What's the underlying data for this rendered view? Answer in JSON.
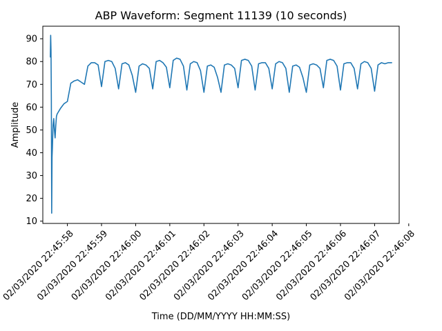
{
  "chart_data": {
    "type": "line",
    "title": "ABP Waveform: Segment 11139 (10 seconds)",
    "xlabel": "Time (DD/MM/YYYY HH:MM:SS)",
    "ylabel": "Amplitude",
    "xlim": [
      "02/03/2020 22:45:57.28",
      "02/03/2020 22:46:07.72"
    ],
    "ylim": [
      9,
      95.5
    ],
    "grid": false,
    "line_color": "#1f77b4",
    "x_ticks": [
      "02/03/2020 22:45:58",
      "02/03/2020 22:45:59",
      "02/03/2020 22:46:00",
      "02/03/2020 22:46:01",
      "02/03/2020 22:46:02",
      "02/03/2020 22:46:03",
      "02/03/2020 22:46:04",
      "02/03/2020 22:46:05",
      "02/03/2020 22:46:06",
      "02/03/2020 22:46:07",
      "02/03/2020 22:46:08"
    ],
    "y_ticks": [
      "10",
      "20",
      "30",
      "40",
      "50",
      "60",
      "70",
      "80",
      "90"
    ],
    "series": [
      {
        "x": [
          "02/03/2020 22:45:57.50",
          "02/03/2020 22:45:57.51",
          "02/03/2020 22:45:57.52",
          "02/03/2020 22:45:57.53",
          "02/03/2020 22:45:57.54",
          "02/03/2020 22:45:57.55",
          "02/03/2020 22:45:57.56",
          "02/03/2020 22:45:57.58",
          "02/03/2020 22:45:57.60",
          "02/03/2020 22:45:57.62",
          "02/03/2020 22:45:57.64",
          "02/03/2020 22:45:57.66",
          "02/03/2020 22:45:57.68",
          "02/03/2020 22:45:57.70",
          "02/03/2020 22:45:57.72",
          "02/03/2020 22:45:57.76",
          "02/03/2020 22:45:57.80",
          "02/03/2020 22:45:57.85",
          "02/03/2020 22:45:57.90",
          "02/03/2020 22:45:58.00",
          "02/03/2020 22:45:58.10",
          "02/03/2020 22:45:58.20",
          "02/03/2020 22:45:58.30",
          "02/03/2020 22:45:58.40",
          "02/03/2020 22:45:58.50",
          "02/03/2020 22:45:58.60",
          "02/03/2020 22:45:58.70",
          "02/03/2020 22:45:58.80",
          "02/03/2020 22:45:58.90",
          "02/03/2020 22:45:59.00",
          "02/03/2020 22:45:59.10",
          "02/03/2020 22:45:59.20",
          "02/03/2020 22:45:59.30",
          "02/03/2020 22:45:59.40",
          "02/03/2020 22:45:59.50",
          "02/03/2020 22:45:59.60",
          "02/03/2020 22:45:59.70",
          "02/03/2020 22:45:59.80",
          "02/03/2020 22:45:59.90",
          "02/03/2020 22:46:00.00",
          "02/03/2020 22:46:00.10",
          "02/03/2020 22:46:00.20",
          "02/03/2020 22:46:00.30",
          "02/03/2020 22:46:00.40",
          "02/03/2020 22:46:00.50",
          "02/03/2020 22:46:00.60",
          "02/03/2020 22:46:00.70",
          "02/03/2020 22:46:00.80",
          "02/03/2020 22:46:00.90",
          "02/03/2020 22:46:01.00",
          "02/03/2020 22:46:01.10",
          "02/03/2020 22:46:01.20",
          "02/03/2020 22:46:01.30",
          "02/03/2020 22:46:01.40",
          "02/03/2020 22:46:01.50",
          "02/03/2020 22:46:01.60",
          "02/03/2020 22:46:01.70",
          "02/03/2020 22:46:01.80",
          "02/03/2020 22:46:01.90",
          "02/03/2020 22:46:02.00",
          "02/03/2020 22:46:02.10",
          "02/03/2020 22:46:02.20",
          "02/03/2020 22:46:02.30",
          "02/03/2020 22:46:02.40",
          "02/03/2020 22:46:02.50",
          "02/03/2020 22:46:02.60",
          "02/03/2020 22:46:02.70",
          "02/03/2020 22:46:02.80",
          "02/03/2020 22:46:02.90",
          "02/03/2020 22:46:03.00",
          "02/03/2020 22:46:03.10",
          "02/03/2020 22:46:03.20",
          "02/03/2020 22:46:03.30",
          "02/03/2020 22:46:03.40",
          "02/03/2020 22:46:03.50",
          "02/03/2020 22:46:03.60",
          "02/03/2020 22:46:03.70",
          "02/03/2020 22:46:03.80",
          "02/03/2020 22:46:03.90",
          "02/03/2020 22:46:04.00",
          "02/03/2020 22:46:04.10",
          "02/03/2020 22:46:04.20",
          "02/03/2020 22:46:04.30",
          "02/03/2020 22:46:04.40",
          "02/03/2020 22:46:04.50",
          "02/03/2020 22:46:04.60",
          "02/03/2020 22:46:04.70",
          "02/03/2020 22:46:04.80",
          "02/03/2020 22:46:04.90",
          "02/03/2020 22:46:05.00",
          "02/03/2020 22:46:05.10",
          "02/03/2020 22:46:05.20",
          "02/03/2020 22:46:05.30",
          "02/03/2020 22:46:05.40",
          "02/03/2020 22:46:05.50",
          "02/03/2020 22:46:05.60",
          "02/03/2020 22:46:05.70",
          "02/03/2020 22:46:05.80",
          "02/03/2020 22:46:05.90",
          "02/03/2020 22:46:06.00",
          "02/03/2020 22:46:06.10",
          "02/03/2020 22:46:06.20",
          "02/03/2020 22:46:06.30",
          "02/03/2020 22:46:06.40",
          "02/03/2020 22:46:06.50",
          "02/03/2020 22:46:06.60",
          "02/03/2020 22:46:06.70",
          "02/03/2020 22:46:06.80",
          "02/03/2020 22:46:06.90",
          "02/03/2020 22:46:07.00",
          "02/03/2020 22:46:07.10",
          "02/03/2020 22:46:07.20",
          "02/03/2020 22:46:07.30",
          "02/03/2020 22:46:07.40",
          "02/03/2020 22:46:07.50"
        ],
        "y": [
          82,
          91.5,
          85,
          63,
          13.5,
          38,
          42,
          52,
          55,
          50,
          46.5,
          52,
          56,
          57,
          57.5,
          58.5,
          59.5,
          60.5,
          61.5,
          62.5,
          70.5,
          71.5,
          72,
          71,
          70,
          78,
          79.5,
          79.5,
          78.5,
          69,
          80,
          80.5,
          80,
          77,
          68,
          79,
          79.5,
          78.5,
          74,
          66.5,
          78,
          79,
          78.5,
          77,
          68,
          80,
          80.5,
          79.5,
          77.5,
          68.5,
          80.5,
          81.5,
          81,
          78,
          67.5,
          79,
          80,
          79.5,
          76,
          66.5,
          78,
          78.5,
          77.5,
          73,
          66.5,
          78.5,
          79,
          78.5,
          77,
          68.5,
          80.5,
          81,
          80.5,
          78,
          67.5,
          79,
          79.5,
          79.5,
          77,
          68,
          79,
          80,
          79.5,
          77,
          66.5,
          78,
          78.5,
          77.5,
          73,
          66.5,
          78.5,
          79,
          78.5,
          77,
          68.5,
          80.5,
          81,
          80.5,
          78,
          67.5,
          79,
          79.5,
          79.5,
          77,
          68,
          79,
          80,
          79.5,
          77,
          67,
          78.5,
          79.5,
          79,
          79.5,
          79.5
        ]
      }
    ]
  }
}
